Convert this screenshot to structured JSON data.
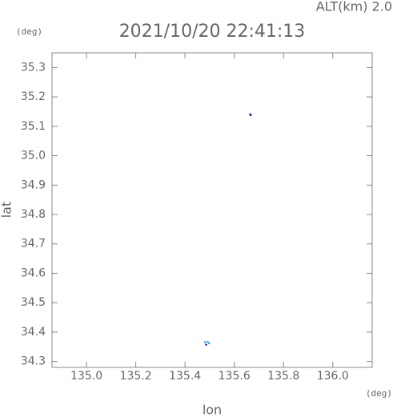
{
  "chart_data": {
    "type": "scatter",
    "title": "2021/10/20 22:41:13",
    "subtitle": "ALT(km) 2.0",
    "x_label": "lon",
    "y_label": "lat",
    "x_unit": "(deg)",
    "y_unit": "(deg)",
    "xlim": [
      134.86,
      136.16
    ],
    "ylim": [
      34.28,
      35.35
    ],
    "xticks": [
      {
        "value": 135.0,
        "label": "135.0"
      },
      135.2,
      135.4,
      135.6,
      135.8,
      {
        "value": 136.0,
        "label": "136.0"
      }
    ],
    "yticks": [
      34.3,
      34.4,
      34.5,
      34.6,
      34.7,
      34.8,
      34.9,
      {
        "value": 35.0,
        "label": "35.0"
      },
      35.1,
      35.2,
      35.3
    ],
    "series": [
      {
        "color": "#2020c0",
        "x": [
          135.665,
          135.667,
          135.486
        ],
        "y": [
          35.141,
          35.138,
          34.357
        ]
      },
      {
        "color": "#30b0d0",
        "x": [
          135.481,
          135.492,
          135.498
        ],
        "y": [
          34.366,
          34.367,
          34.362
        ]
      }
    ]
  }
}
